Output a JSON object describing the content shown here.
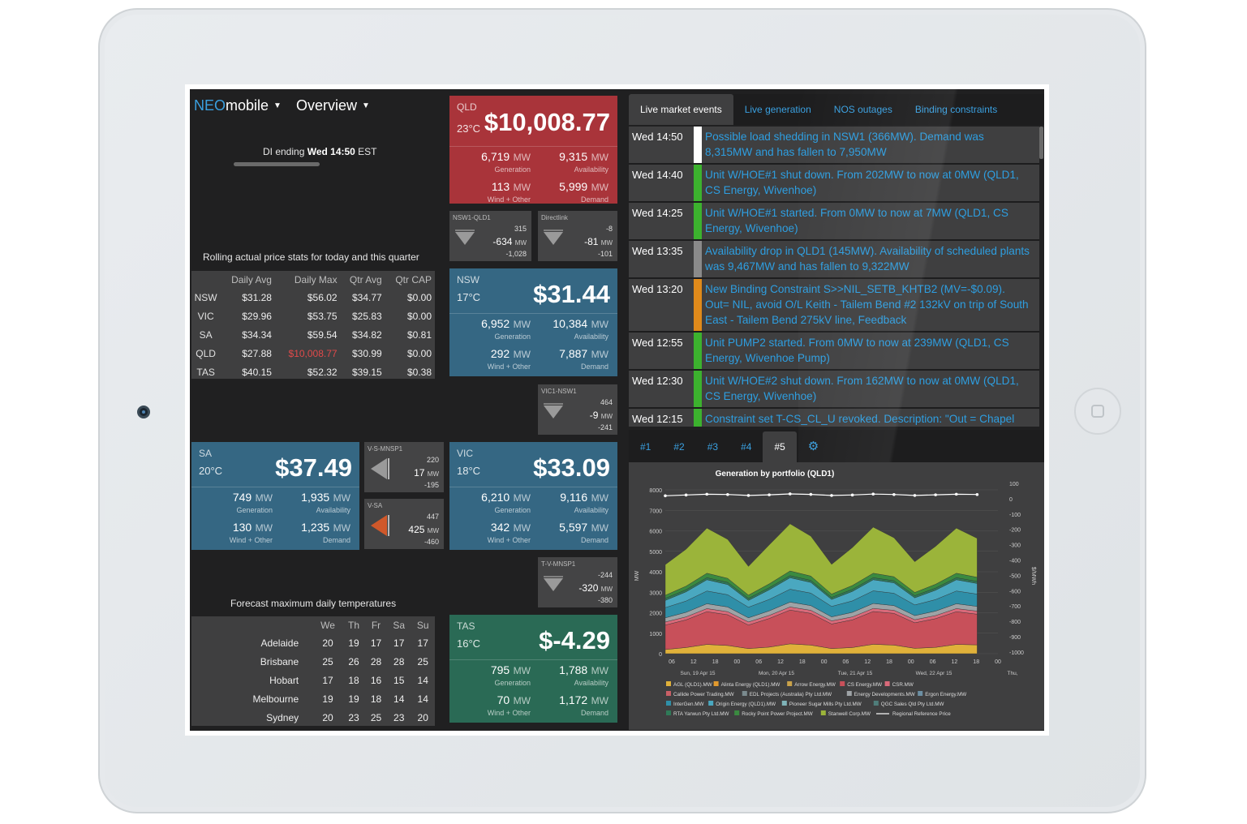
{
  "header": {
    "brand_neo": "NEO",
    "brand_mobile": "mobile",
    "view": "Overview",
    "di_prefix": "DI ending ",
    "di_time": "Wed 14:50",
    "di_suffix": " EST",
    "di_progress": 0.6
  },
  "stats": {
    "title": "Rolling actual price stats for today and this quarter",
    "headers": [
      "",
      "Daily Avg",
      "Daily Max",
      "Qtr Avg",
      "Qtr CAP"
    ],
    "rows": [
      {
        "region": "NSW",
        "daily_avg": "$31.28",
        "daily_max": "$56.02",
        "qtr_avg": "$34.77",
        "qtr_cap": "$0.00"
      },
      {
        "region": "VIC",
        "daily_avg": "$29.96",
        "daily_max": "$53.75",
        "qtr_avg": "$25.83",
        "qtr_cap": "$0.00"
      },
      {
        "region": "SA",
        "daily_avg": "$34.34",
        "daily_max": "$59.54",
        "qtr_avg": "$34.82",
        "qtr_cap": "$0.81"
      },
      {
        "region": "QLD",
        "daily_avg": "$27.88",
        "daily_max": "$10,008.77",
        "qtr_avg": "$30.99",
        "qtr_cap": "$0.00"
      },
      {
        "region": "TAS",
        "daily_avg": "$40.15",
        "daily_max": "$52.32",
        "qtr_avg": "$39.15",
        "qtr_cap": "$0.38"
      }
    ],
    "highlight_color": "#e04a4a"
  },
  "temps": {
    "title": "Forecast maximum daily temperatures",
    "days": [
      "We",
      "Th",
      "Fr",
      "Sa",
      "Su"
    ],
    "rows": [
      {
        "city": "Adelaide",
        "v": [
          "20",
          "19",
          "17",
          "17",
          "17"
        ]
      },
      {
        "city": "Brisbane",
        "v": [
          "25",
          "26",
          "28",
          "28",
          "25"
        ]
      },
      {
        "city": "Hobart",
        "v": [
          "17",
          "18",
          "16",
          "15",
          "14"
        ]
      },
      {
        "city": "Melbourne",
        "v": [
          "19",
          "19",
          "18",
          "14",
          "14"
        ]
      },
      {
        "city": "Sydney",
        "v": [
          "20",
          "23",
          "25",
          "23",
          "20"
        ]
      }
    ]
  },
  "regions": {
    "labels": {
      "generation": "Generation",
      "availability": "Availability",
      "wind": "Wind + Other",
      "demand": "Demand",
      "mw": "MW",
      "deg": "°C"
    },
    "qld": {
      "name": "QLD",
      "temp": "23",
      "price": "$10,008.77",
      "generation": "6,719",
      "availability": "9,315",
      "wind": "113",
      "demand": "5,999",
      "color": "#a9343a"
    },
    "nsw": {
      "name": "NSW",
      "temp": "17",
      "price": "$31.44",
      "generation": "6,952",
      "availability": "10,384",
      "wind": "292",
      "demand": "7,887",
      "color": "#356783"
    },
    "sa": {
      "name": "SA",
      "temp": "20",
      "price": "$37.49",
      "generation": "749",
      "availability": "1,935",
      "wind": "130",
      "demand": "1,235",
      "color": "#356783"
    },
    "vic": {
      "name": "VIC",
      "temp": "18",
      "price": "$33.09",
      "generation": "6,210",
      "availability": "9,116",
      "wind": "342",
      "demand": "5,597",
      "color": "#356783"
    },
    "tas": {
      "name": "TAS",
      "temp": "16",
      "price": "$-4.29",
      "generation": "795",
      "availability": "1,788",
      "wind": "70",
      "demand": "1,172",
      "color": "#2a6a55"
    }
  },
  "interconnectors": {
    "mw": "MW",
    "nsw_qld": {
      "name": "NSW1-QLD1",
      "top": "315",
      "flow": "-634",
      "bottom": "-1,028"
    },
    "directlink": {
      "name": "Directlink",
      "top": "-8",
      "flow": "-81",
      "bottom": "-101"
    },
    "vic_nsw": {
      "name": "VIC1-NSW1",
      "top": "464",
      "flow": "-9",
      "bottom": "-241"
    },
    "vs_mnsp": {
      "name": "V-S-MNSP1",
      "top": "220",
      "flow": "17",
      "bottom": "-195"
    },
    "v_sa": {
      "name": "V-SA",
      "top": "447",
      "flow": "425",
      "bottom": "-460"
    },
    "tv_mnsp": {
      "name": "T-V-MNSP1",
      "top": "-244",
      "flow": "-320",
      "bottom": "-380"
    }
  },
  "events": {
    "tabs": [
      "Live market events",
      "Live generation",
      "NOS outages",
      "Binding constraints"
    ],
    "items": [
      {
        "time": "Wed 14:50",
        "color": "#ffffff",
        "text": "Possible load shedding in NSW1 (366MW). Demand was 8,315MW and has fallen to 7,950MW"
      },
      {
        "time": "Wed 14:40",
        "color": "#3cb22e",
        "text": "Unit W/HOE#1 shut down. From 202MW to now at 0MW (QLD1, CS Energy, Wivenhoe)"
      },
      {
        "time": "Wed 14:25",
        "color": "#3cb22e",
        "text": "Unit W/HOE#1 started. From 0MW to now at 7MW (QLD1, CS Energy, Wivenhoe)"
      },
      {
        "time": "Wed 13:35",
        "color": "#8a8a8a",
        "text": "Availability drop in QLD1 (145MW). Availability of scheduled plants was 9,467MW and has fallen to 9,322MW"
      },
      {
        "time": "Wed 13:20",
        "color": "#e08a1a",
        "text": "New Binding Constraint S>>NIL_SETB_KHTB2 (MV=-$0.09). Out= NIL, avoid O/L Keith - Tailem Bend #2 132kV on trip of South East - Tailem Bend 275kV line, Feedback"
      },
      {
        "time": "Wed 12:55",
        "color": "#3cb22e",
        "text": "Unit PUMP2 started. From 0MW to now at 239MW (QLD1, CS Energy, Wivenhoe Pump)"
      },
      {
        "time": "Wed 12:30",
        "color": "#3cb22e",
        "text": "Unit W/HOE#2 shut down. From 162MW to now at 0MW (QLD1, CS Energy, Wivenhoe)"
      },
      {
        "time": "Wed 12:15",
        "color": "#3cb22e",
        "text": "Constraint set T-CS_CL_U revoked. Description: \"Out = Chapel"
      }
    ]
  },
  "chart_tabs": [
    "#1",
    "#2",
    "#3",
    "#4",
    "#5"
  ],
  "chart_data": {
    "type": "area",
    "title": "Generation by portfolio (QLD1)",
    "ylabel": "MW",
    "y2label": "$/MWh",
    "ylim": [
      0,
      8000
    ],
    "y2lim": [
      -1000,
      100
    ],
    "yticks": [
      "8000",
      "7000",
      "6000",
      "5000",
      "4000",
      "3000",
      "2000",
      "1000",
      "0"
    ],
    "y2ticks": [
      "100",
      "0",
      "-100",
      "-200",
      "-300",
      "-400",
      "-500",
      "-600",
      "-700",
      "-800",
      "-900",
      "-1000"
    ],
    "xticks": [
      "06",
      "12",
      "18",
      "00",
      "06",
      "12",
      "18",
      "00",
      "06",
      "12",
      "18",
      "00",
      "06",
      "12",
      "18",
      "00"
    ],
    "date_labels": [
      "Sun, 19 Apr 15",
      "Mon, 20 Apr 15",
      "Tue, 21 Apr 15",
      "Wed, 22 Apr 15",
      "Thu,"
    ],
    "legend": [
      {
        "name": "AGL (QLD1).MW",
        "color": "#e0b13a"
      },
      {
        "name": "Alinta Energy (QLD1).MW",
        "color": "#e29a2e"
      },
      {
        "name": "Arrow Energy.MW",
        "color": "#c9a24a"
      },
      {
        "name": "CS Energy.MW",
        "color": "#c8505a"
      },
      {
        "name": "CSR.MW",
        "color": "#d96a7a"
      },
      {
        "name": "Callide Power Trading.MW",
        "color": "#c95f66"
      },
      {
        "name": "EDL Projects (Australia) Pty Ltd.MW",
        "color": "#7a8a8e"
      },
      {
        "name": "Energy Developments.MW",
        "color": "#9ea3a6"
      },
      {
        "name": "Ergon Energy.MW",
        "color": "#6c8fa3"
      },
      {
        "name": "InterGen.MW",
        "color": "#2f8fa8"
      },
      {
        "name": "Origin Energy (QLD1).MW",
        "color": "#4aa8c0"
      },
      {
        "name": "Pioneer Sugar Mills Pty Ltd.MW",
        "color": "#7fb3b8"
      },
      {
        "name": "QGC Sales Qld Pty Ltd.MW",
        "color": "#4f7d7a"
      },
      {
        "name": "RTA Yarwun Pty Ltd.MW",
        "color": "#2f7a58"
      },
      {
        "name": "Rocky Point Power Project.MW",
        "color": "#3a8a40"
      },
      {
        "name": "Stanwell Corp.MW",
        "color": "#9bb43a"
      },
      {
        "name": "Regional Reference Price",
        "color": "#ffffff"
      }
    ],
    "x_hours": [
      0,
      6,
      12,
      18,
      24,
      30,
      36,
      42,
      48,
      54,
      60,
      66,
      72,
      78,
      84,
      90
    ],
    "series": [
      {
        "name": "AGL (QLD1).MW",
        "values": [
          200,
          300,
          450,
          400,
          250,
          320,
          480,
          420,
          250,
          300,
          460,
          420,
          260,
          310,
          450,
          430
        ]
      },
      {
        "name": "CS Energy.MW",
        "values": [
          1200,
          1350,
          1600,
          1500,
          1150,
          1400,
          1650,
          1550,
          1200,
          1350,
          1600,
          1550,
          1250,
          1400,
          1600,
          1500
        ]
      },
      {
        "name": "CSR.MW",
        "values": [
          150,
          150,
          150,
          150,
          150,
          150,
          150,
          150,
          150,
          150,
          150,
          150,
          150,
          150,
          150,
          150
        ]
      },
      {
        "name": "Energy Developments.MW",
        "values": [
          200,
          220,
          240,
          230,
          200,
          220,
          240,
          230,
          200,
          220,
          240,
          230,
          200,
          220,
          240,
          230
        ]
      },
      {
        "name": "InterGen.MW",
        "values": [
          500,
          550,
          620,
          600,
          520,
          560,
          630,
          610,
          510,
          560,
          620,
          600,
          520,
          560,
          620,
          600
        ]
      },
      {
        "name": "Origin Energy (QLD1).MW",
        "values": [
          350,
          450,
          550,
          500,
          330,
          470,
          560,
          520,
          340,
          460,
          540,
          510,
          350,
          460,
          550,
          520
        ]
      },
      {
        "name": "RTA Yarwun Pty Ltd.MW",
        "values": [
          100,
          100,
          100,
          100,
          100,
          100,
          100,
          100,
          100,
          100,
          100,
          100,
          100,
          100,
          100,
          100
        ]
      },
      {
        "name": "Rocky Point Power Project.MW",
        "values": [
          150,
          180,
          220,
          200,
          160,
          190,
          230,
          210,
          160,
          190,
          220,
          200,
          160,
          190,
          220,
          200
        ]
      },
      {
        "name": "Stanwell Corp.MW",
        "values": [
          1500,
          1800,
          2200,
          1900,
          1400,
          1900,
          2300,
          1950,
          1450,
          1850,
          2250,
          1900,
          1500,
          1850,
          2200,
          1900
        ]
      },
      {
        "name": "Regional Reference Price",
        "values": [
          20,
          25,
          30,
          28,
          22,
          26,
          32,
          29,
          22,
          25,
          31,
          28,
          22,
          26,
          30,
          28
        ]
      }
    ]
  }
}
